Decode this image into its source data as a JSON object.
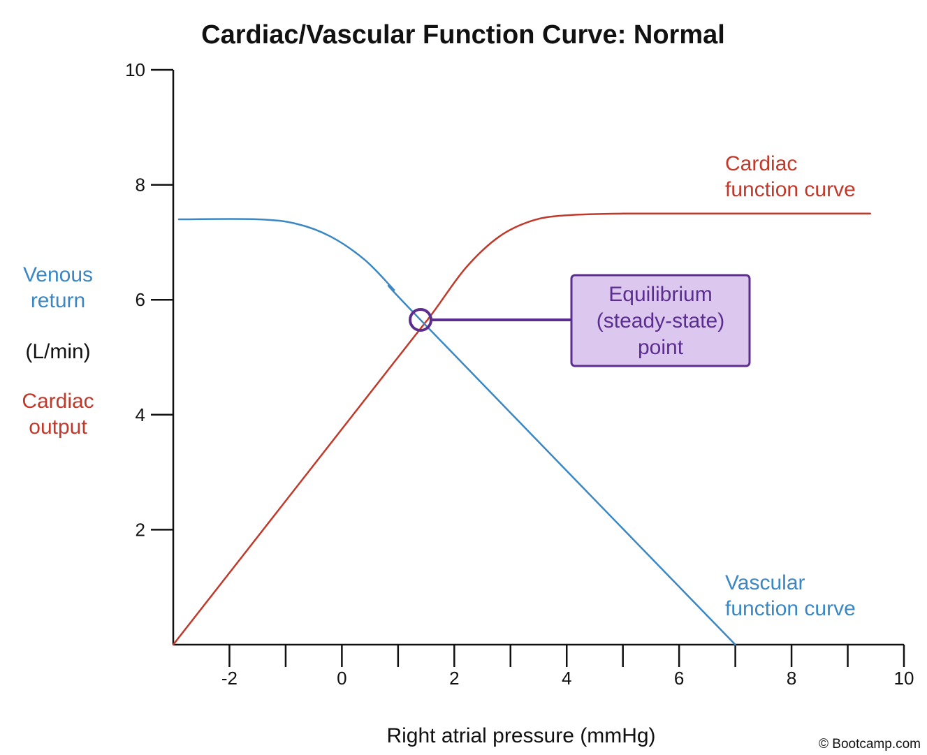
{
  "chart_data": {
    "type": "line",
    "title": "Cardiac/Vascular Function Curve: Normal",
    "xlabel": "Right atrial pressure (mmHg)",
    "ylabel": {
      "venous_return": [
        "Venous",
        "return"
      ],
      "units": "(L/min)",
      "cardiac_output": [
        "Cardiac",
        "output"
      ]
    },
    "xlim": [
      -3,
      10
    ],
    "ylim": [
      0,
      10
    ],
    "x_ticks": [
      -2,
      -1,
      0,
      1,
      2,
      3,
      4,
      5,
      6,
      7,
      8,
      9,
      10
    ],
    "x_tick_labels": [
      "-2",
      "",
      "0",
      "",
      "2",
      "",
      "4",
      "",
      "6",
      "",
      "8",
      "",
      "10"
    ],
    "y_ticks": [
      2,
      4,
      6,
      8,
      10
    ],
    "y_tick_labels": [
      "2",
      "4",
      "6",
      "8",
      "10"
    ],
    "grid": false,
    "series": [
      {
        "name": "Cardiac function curve",
        "label_lines": [
          "Cardiac",
          "function curve"
        ],
        "color": "#c0392b",
        "points": [
          [
            -3.0,
            0.0
          ],
          [
            1.0,
            5.0
          ],
          [
            1.6,
            5.75
          ],
          [
            2.2,
            6.55
          ],
          [
            2.8,
            7.1
          ],
          [
            3.4,
            7.38
          ],
          [
            4.0,
            7.47
          ],
          [
            5.0,
            7.5
          ],
          [
            7.0,
            7.5
          ],
          [
            9.4,
            7.5
          ]
        ]
      },
      {
        "name": "Vascular function curve",
        "label_lines": [
          "Vascular",
          "function curve"
        ],
        "color": "#3a87c4",
        "points": [
          [
            -2.9,
            7.4
          ],
          [
            -1.5,
            7.4
          ],
          [
            -0.8,
            7.32
          ],
          [
            -0.2,
            7.1
          ],
          [
            0.4,
            6.7
          ],
          [
            0.9,
            6.2
          ],
          [
            1.4,
            5.65
          ],
          [
            7.0,
            0.0
          ]
        ]
      }
    ],
    "annotation": {
      "lines": [
        "Equilibrium",
        "(steady-state)",
        "point"
      ],
      "x": 1.4,
      "y": 5.65,
      "color": "#5b2d8e",
      "fill": "#dcc8ef"
    }
  },
  "credit": "© Bootcamp.com"
}
